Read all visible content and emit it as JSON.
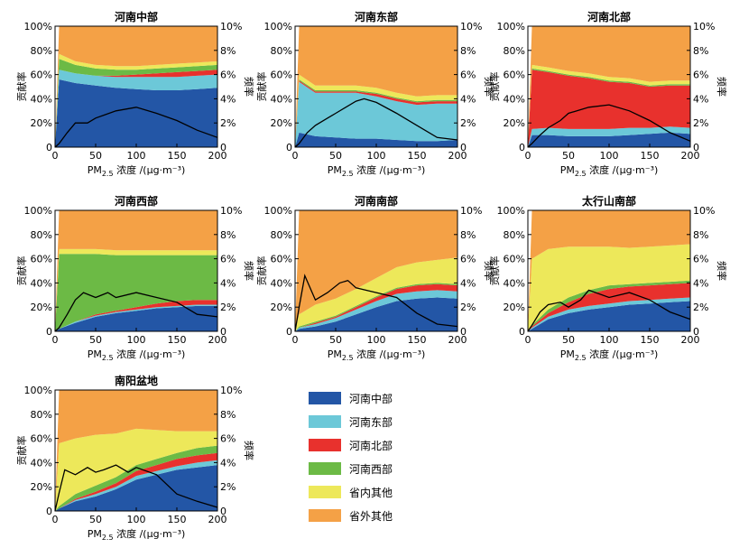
{
  "figure": {
    "legend_entries": [
      {
        "name": "河南中部",
        "color": "#2356a6"
      },
      {
        "name": "河南东部",
        "color": "#6cc8d8"
      },
      {
        "name": "河南北部",
        "color": "#e8312d"
      },
      {
        "name": "河南西部",
        "color": "#6cba45"
      },
      {
        "name": "省内其他",
        "color": "#ede85a"
      },
      {
        "name": "省外其他",
        "color": "#f4a146"
      }
    ],
    "frequency_color": "#000000"
  },
  "chart_data": [
    {
      "type": "area",
      "title": "河南中部",
      "xlabel": "PM2.5 浓度 /(μg·m⁻³)",
      "ylabel_left": "贡献率",
      "ylabel_right": "频率",
      "x": [
        0,
        5,
        25,
        50,
        75,
        100,
        125,
        150,
        175,
        200
      ],
      "xlim": [
        0,
        200
      ],
      "xticks": [
        "0",
        "50",
        "100",
        "150",
        "200"
      ],
      "ylim_left": [
        0,
        100
      ],
      "yticks_left": [
        "0",
        "20%",
        "40%",
        "60%",
        "80%",
        "100%"
      ],
      "ylim_right": [
        0,
        10
      ],
      "yticks_right": [
        "0",
        "2%",
        "4%",
        "6%",
        "8%",
        "10%"
      ],
      "series": [
        {
          "name": "河南中部",
          "values": [
            0,
            56,
            53,
            51,
            49,
            48,
            47,
            47,
            48,
            49
          ]
        },
        {
          "name": "河南东部",
          "values": [
            0,
            8,
            8,
            8,
            9,
            10,
            11,
            11,
            11,
            11
          ]
        },
        {
          "name": "河南北部",
          "values": [
            0,
            0,
            0,
            0,
            1,
            2,
            3,
            4,
            4,
            4
          ]
        },
        {
          "name": "河南西部",
          "values": [
            0,
            9,
            7,
            6,
            5,
            4,
            4,
            4,
            4,
            4
          ]
        },
        {
          "name": "省内其他",
          "values": [
            0,
            4,
            3,
            3,
            3,
            3,
            3,
            3,
            3,
            3
          ]
        },
        {
          "name": "省外其他",
          "values": [
            0,
            23,
            29,
            32,
            33,
            33,
            32,
            31,
            30,
            29
          ]
        }
      ],
      "frequency": {
        "x": [
          0,
          5,
          15,
          25,
          40,
          50,
          75,
          100,
          125,
          150,
          175,
          200
        ],
        "values": [
          0,
          0.3,
          1.2,
          2.0,
          2.0,
          2.4,
          3.0,
          3.3,
          2.8,
          2.2,
          1.4,
          0.8
        ]
      }
    },
    {
      "type": "area",
      "title": "河南东部",
      "xlabel": "PM2.5 浓度 /(μg·m⁻³)",
      "ylabel_left": "贡献率",
      "ylabel_right": "频率",
      "x": [
        0,
        5,
        25,
        50,
        75,
        100,
        125,
        150,
        175,
        200
      ],
      "xlim": [
        0,
        200
      ],
      "xticks": [
        "0",
        "50",
        "100",
        "150",
        "200"
      ],
      "ylim_left": [
        0,
        100
      ],
      "yticks_left": [
        "0",
        "20%",
        "40%",
        "60%",
        "80%",
        "100%"
      ],
      "ylim_right": [
        0,
        10
      ],
      "yticks_right": [
        "0",
        "2%",
        "4%",
        "6%",
        "8%",
        "10%"
      ],
      "series": [
        {
          "name": "河南中部",
          "values": [
            0,
            12,
            9,
            8,
            7,
            7,
            6,
            5,
            5,
            6
          ]
        },
        {
          "name": "河南东部",
          "values": [
            0,
            42,
            36,
            37,
            38,
            35,
            32,
            30,
            31,
            30
          ]
        },
        {
          "name": "河南北部",
          "values": [
            0,
            1,
            1,
            1,
            1,
            2,
            2,
            2,
            2,
            2
          ]
        },
        {
          "name": "河南西部",
          "values": [
            0,
            1,
            1,
            1,
            1,
            1,
            1,
            1,
            1,
            1
          ]
        },
        {
          "name": "省内其他",
          "values": [
            0,
            4,
            4,
            4,
            4,
            4,
            4,
            4,
            4,
            4
          ]
        },
        {
          "name": "省外其他",
          "values": [
            0,
            40,
            49,
            49,
            49,
            51,
            55,
            58,
            57,
            57
          ]
        }
      ],
      "frequency": {
        "x": [
          0,
          5,
          15,
          25,
          40,
          50,
          75,
          85,
          100,
          125,
          150,
          175,
          200
        ],
        "values": [
          0,
          0.3,
          1.2,
          1.8,
          2.4,
          2.8,
          3.8,
          4.0,
          3.7,
          2.8,
          1.8,
          0.8,
          0.6
        ]
      }
    },
    {
      "type": "area",
      "title": "河南北部",
      "xlabel": "PM2.5 浓度 /(μg·m⁻³)",
      "ylabel_left": "贡献率",
      "ylabel_right": "频率",
      "x": [
        0,
        5,
        25,
        50,
        75,
        100,
        125,
        150,
        175,
        200
      ],
      "xlim": [
        0,
        200
      ],
      "xticks": [
        "0",
        "50",
        "100",
        "150",
        "200"
      ],
      "ylim_left": [
        0,
        100
      ],
      "yticks_left": [
        "0",
        "20%",
        "40%",
        "60%",
        "80%",
        "100%"
      ],
      "ylim_right": [
        0,
        10
      ],
      "yticks_right": [
        "0",
        "2%",
        "4%",
        "6%",
        "8%",
        "10%"
      ],
      "series": [
        {
          "name": "河南中部",
          "values": [
            0,
            10,
            10,
            9,
            9,
            9,
            10,
            11,
            12,
            11
          ]
        },
        {
          "name": "河南东部",
          "values": [
            0,
            5,
            6,
            6,
            6,
            6,
            6,
            5,
            5,
            5
          ]
        },
        {
          "name": "河南北部",
          "values": [
            0,
            49,
            46,
            44,
            42,
            39,
            37,
            34,
            34,
            35
          ]
        },
        {
          "name": "河南西部",
          "values": [
            0,
            1,
            1,
            1,
            1,
            1,
            1,
            1,
            1,
            1
          ]
        },
        {
          "name": "省内其他",
          "values": [
            0,
            3,
            3,
            3,
            3,
            3,
            3,
            3,
            3,
            3
          ]
        },
        {
          "name": "省外其他",
          "values": [
            0,
            32,
            34,
            37,
            39,
            42,
            43,
            46,
            45,
            45
          ]
        }
      ],
      "frequency": {
        "x": [
          0,
          5,
          15,
          25,
          40,
          50,
          75,
          100,
          125,
          150,
          175,
          200
        ],
        "values": [
          0,
          0.3,
          1.0,
          1.6,
          2.2,
          2.8,
          3.3,
          3.5,
          3.0,
          2.2,
          1.2,
          0.5
        ]
      }
    },
    {
      "type": "area",
      "title": "河南西部",
      "xlabel": "PM2.5 浓度 /(μg·m⁻³)",
      "ylabel_left": "贡献率",
      "ylabel_right": "频率",
      "x": [
        0,
        5,
        25,
        50,
        75,
        100,
        125,
        150,
        175,
        200
      ],
      "xlim": [
        0,
        200
      ],
      "xticks": [
        "0",
        "50",
        "100",
        "150",
        "200"
      ],
      "ylim_left": [
        0,
        100
      ],
      "yticks_left": [
        "0",
        "20%",
        "40%",
        "60%",
        "80%",
        "100%"
      ],
      "ylim_right": [
        0,
        10
      ],
      "yticks_right": [
        "0",
        "2%",
        "4%",
        "6%",
        "8%",
        "10%"
      ],
      "series": [
        {
          "name": "河南中部",
          "values": [
            0,
            2,
            7,
            12,
            15,
            17,
            19,
            20,
            21,
            21
          ]
        },
        {
          "name": "河南东部",
          "values": [
            0,
            0,
            1,
            1,
            1,
            1,
            1,
            1,
            1,
            1
          ]
        },
        {
          "name": "河南北部",
          "values": [
            0,
            0,
            0,
            1,
            1,
            2,
            3,
            4,
            4,
            4
          ]
        },
        {
          "name": "河南西部",
          "values": [
            0,
            62,
            56,
            50,
            46,
            43,
            40,
            38,
            37,
            37
          ]
        },
        {
          "name": "省内其他",
          "values": [
            0,
            4,
            4,
            4,
            4,
            4,
            4,
            4,
            4,
            4
          ]
        },
        {
          "name": "省外其他",
          "values": [
            0,
            32,
            32,
            32,
            33,
            33,
            33,
            33,
            33,
            33
          ]
        }
      ],
      "frequency": {
        "x": [
          0,
          5,
          15,
          25,
          35,
          50,
          65,
          75,
          100,
          125,
          150,
          175,
          200
        ],
        "values": [
          0,
          0.3,
          1.4,
          2.6,
          3.2,
          2.8,
          3.2,
          2.8,
          3.2,
          2.8,
          2.4,
          1.4,
          1.2
        ]
      }
    },
    {
      "type": "area",
      "title": "河南南部",
      "xlabel": "PM2.5 浓度 /(μg·m⁻³)",
      "ylabel_left": "贡献率",
      "ylabel_right": "频率",
      "x": [
        0,
        5,
        25,
        50,
        75,
        100,
        125,
        150,
        175,
        200
      ],
      "xlim": [
        0,
        200
      ],
      "xticks": [
        "0",
        "50",
        "100",
        "150",
        "200"
      ],
      "ylim_left": [
        0,
        100
      ],
      "yticks_left": [
        "0",
        "20%",
        "40%",
        "60%",
        "80%",
        "100%"
      ],
      "ylim_right": [
        0,
        10
      ],
      "yticks_right": [
        "0",
        "2%",
        "4%",
        "6%",
        "8%",
        "10%"
      ],
      "series": [
        {
          "name": "河南中部",
          "values": [
            0,
            2,
            4,
            8,
            14,
            20,
            25,
            27,
            28,
            27
          ]
        },
        {
          "name": "河南东部",
          "values": [
            0,
            1,
            2,
            3,
            4,
            5,
            6,
            6,
            6,
            6
          ]
        },
        {
          "name": "河南北部",
          "values": [
            0,
            0,
            1,
            1,
            2,
            3,
            4,
            5,
            5,
            5
          ]
        },
        {
          "name": "河南西部",
          "values": [
            0,
            1,
            1,
            1,
            1,
            1,
            1,
            1,
            1,
            1
          ]
        },
        {
          "name": "省内其他",
          "values": [
            0,
            10,
            14,
            14,
            14,
            15,
            17,
            18,
            19,
            22
          ]
        },
        {
          "name": "省外其他",
          "values": [
            0,
            86,
            78,
            73,
            65,
            56,
            47,
            43,
            41,
            39
          ]
        }
      ],
      "frequency": {
        "x": [
          0,
          5,
          12,
          25,
          40,
          55,
          65,
          75,
          100,
          125,
          150,
          175,
          200
        ],
        "values": [
          0,
          2.0,
          4.6,
          2.6,
          3.2,
          4.0,
          4.2,
          3.6,
          3.2,
          2.8,
          1.5,
          0.6,
          0.4
        ]
      }
    },
    {
      "type": "area",
      "title": "太行山南部",
      "xlabel": "PM2.5 浓度 /(μg·m⁻³)",
      "ylabel_left": "贡献率",
      "ylabel_right": "频率",
      "x": [
        0,
        5,
        25,
        50,
        75,
        100,
        125,
        150,
        175,
        200
      ],
      "xlim": [
        0,
        200
      ],
      "xticks": [
        "0",
        "50",
        "100",
        "150",
        "200"
      ],
      "ylim_left": [
        0,
        100
      ],
      "yticks_left": [
        "0",
        "20%",
        "40%",
        "60%",
        "80%",
        "100%"
      ],
      "ylim_right": [
        0,
        10
      ],
      "yticks_right": [
        "0",
        "2%",
        "4%",
        "6%",
        "8%",
        "10%"
      ],
      "series": [
        {
          "name": "河南中部",
          "values": [
            0,
            2,
            10,
            15,
            18,
            20,
            22,
            23,
            24,
            25
          ]
        },
        {
          "name": "河南东部",
          "values": [
            0,
            1,
            2,
            3,
            3,
            3,
            3,
            3,
            3,
            3
          ]
        },
        {
          "name": "河南北部",
          "values": [
            0,
            1,
            3,
            6,
            10,
            12,
            12,
            12,
            12,
            12
          ]
        },
        {
          "name": "河南西部",
          "values": [
            0,
            1,
            3,
            4,
            3,
            3,
            2,
            2,
            2,
            2
          ]
        },
        {
          "name": "省内其他",
          "values": [
            0,
            55,
            50,
            42,
            36,
            32,
            30,
            30,
            30,
            30
          ]
        },
        {
          "name": "省外其他",
          "values": [
            0,
            40,
            32,
            30,
            30,
            30,
            31,
            30,
            29,
            28
          ]
        }
      ],
      "frequency": {
        "x": [
          0,
          5,
          15,
          25,
          40,
          50,
          65,
          75,
          100,
          125,
          150,
          175,
          200
        ],
        "values": [
          0,
          0.5,
          1.6,
          2.2,
          2.4,
          2.0,
          2.6,
          3.4,
          2.8,
          3.2,
          2.6,
          1.6,
          1.0
        ]
      }
    },
    {
      "type": "area",
      "title": "南阳盆地",
      "xlabel": "PM2.5 浓度 /(μg·m⁻³)",
      "ylabel_left": "贡献率",
      "ylabel_right": "频率",
      "x": [
        0,
        5,
        25,
        50,
        75,
        100,
        125,
        150,
        175,
        200
      ],
      "xlim": [
        0,
        200
      ],
      "xticks": [
        "0",
        "50",
        "100",
        "150",
        "200"
      ],
      "ylim_left": [
        0,
        100
      ],
      "yticks_left": [
        "0",
        "20%",
        "40%",
        "60%",
        "80%",
        "100%"
      ],
      "ylim_right": [
        0,
        10
      ],
      "yticks_right": [
        "0",
        "2%",
        "4%",
        "6%",
        "8%",
        "10%"
      ],
      "series": [
        {
          "name": "河南中部",
          "values": [
            0,
            2,
            8,
            12,
            18,
            26,
            30,
            34,
            36,
            38
          ]
        },
        {
          "name": "河南东部",
          "values": [
            0,
            0,
            1,
            2,
            2,
            3,
            3,
            3,
            4,
            4
          ]
        },
        {
          "name": "河南北部",
          "values": [
            0,
            0,
            1,
            2,
            3,
            4,
            5,
            6,
            6,
            6
          ]
        },
        {
          "name": "河南西部",
          "values": [
            0,
            2,
            4,
            5,
            5,
            5,
            5,
            5,
            6,
            6
          ]
        },
        {
          "name": "省内其他",
          "values": [
            0,
            52,
            46,
            42,
            36,
            30,
            24,
            18,
            14,
            12
          ]
        },
        {
          "name": "省外其他",
          "values": [
            0,
            44,
            40,
            37,
            36,
            32,
            33,
            34,
            34,
            34
          ]
        }
      ],
      "frequency": {
        "x": [
          0,
          5,
          12,
          25,
          40,
          50,
          60,
          75,
          90,
          100,
          125,
          150,
          175,
          200
        ],
        "values": [
          0,
          1.5,
          3.4,
          3.0,
          3.6,
          3.2,
          3.4,
          3.8,
          3.2,
          3.6,
          3.0,
          1.4,
          0.8,
          0.3
        ]
      }
    }
  ]
}
